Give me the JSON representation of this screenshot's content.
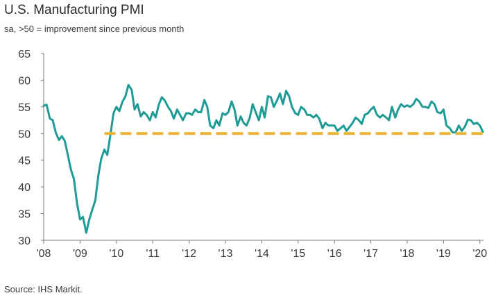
{
  "header": {
    "title": "U.S. Manufacturing PMI",
    "subtitle": "sa, >50 = improvement since previous month"
  },
  "footer": {
    "source": "Source: IHS Markit."
  },
  "colors": {
    "line": "#1e9b95",
    "threshold": "#e8b333",
    "axis": "#7a7a7a",
    "grid": "#d9d9d9"
  },
  "chart_data": {
    "type": "line",
    "title": "U.S. Manufacturing PMI",
    "subtitle": "sa, >50 = improvement since previous month",
    "ylim": [
      30,
      65
    ],
    "xlim": [
      2008.0,
      2020.1
    ],
    "yticks": [
      30,
      35,
      40,
      45,
      50,
      55,
      60,
      65
    ],
    "xticks": [
      {
        "value": 2008,
        "label": "'08"
      },
      {
        "value": 2009,
        "label": "'09"
      },
      {
        "value": 2010,
        "label": "'10"
      },
      {
        "value": 2011,
        "label": "'11"
      },
      {
        "value": 2012,
        "label": "'12"
      },
      {
        "value": 2013,
        "label": "'13"
      },
      {
        "value": 2014,
        "label": "'14"
      },
      {
        "value": 2015,
        "label": "'15"
      },
      {
        "value": 2016,
        "label": "'16"
      },
      {
        "value": 2017,
        "label": "'17"
      },
      {
        "value": 2018,
        "label": "'18"
      },
      {
        "value": 2019,
        "label": "'19"
      },
      {
        "value": 2020,
        "label": "'20"
      }
    ],
    "grid": false,
    "series": [
      {
        "style": "solid",
        "x": [
          2008.0,
          2008.08,
          2008.17,
          2008.25,
          2008.33,
          2008.42,
          2008.5,
          2008.58,
          2008.67,
          2008.75,
          2008.83,
          2008.92,
          2009.0,
          2009.08,
          2009.17,
          2009.25,
          2009.33,
          2009.42,
          2009.5,
          2009.58,
          2009.67,
          2009.75,
          2009.83,
          2009.92,
          2010.0,
          2010.08,
          2010.17,
          2010.25,
          2010.33,
          2010.42,
          2010.5,
          2010.58,
          2010.67,
          2010.75,
          2010.83,
          2010.92,
          2011.0,
          2011.08,
          2011.17,
          2011.25,
          2011.33,
          2011.42,
          2011.5,
          2011.58,
          2011.67,
          2011.75,
          2011.83,
          2011.92,
          2012.0,
          2012.08,
          2012.17,
          2012.25,
          2012.33,
          2012.42,
          2012.5,
          2012.58,
          2012.67,
          2012.75,
          2012.83,
          2012.92,
          2013.0,
          2013.08,
          2013.17,
          2013.25,
          2013.33,
          2013.42,
          2013.5,
          2013.58,
          2013.67,
          2013.75,
          2013.83,
          2013.92,
          2014.0,
          2014.08,
          2014.17,
          2014.25,
          2014.33,
          2014.42,
          2014.5,
          2014.58,
          2014.67,
          2014.75,
          2014.83,
          2014.92,
          2015.0,
          2015.08,
          2015.17,
          2015.25,
          2015.33,
          2015.42,
          2015.5,
          2015.58,
          2015.67,
          2015.75,
          2015.83,
          2015.92,
          2016.0,
          2016.08,
          2016.17,
          2016.25,
          2016.33,
          2016.42,
          2016.5,
          2016.58,
          2016.67,
          2016.75,
          2016.83,
          2016.92,
          2017.0,
          2017.08,
          2017.17,
          2017.25,
          2017.33,
          2017.42,
          2017.5,
          2017.58,
          2017.67,
          2017.75,
          2017.83,
          2017.92,
          2018.0,
          2018.08,
          2018.17,
          2018.25,
          2018.33,
          2018.42,
          2018.5,
          2018.58,
          2018.67,
          2018.75,
          2018.83,
          2018.92,
          2019.0,
          2019.08,
          2019.17,
          2019.25,
          2019.33,
          2019.42,
          2019.5,
          2019.58,
          2019.67,
          2019.75,
          2019.83,
          2019.92,
          2020.0,
          2020.08
        ],
        "y": [
          55.2,
          55.4,
          52.8,
          52.5,
          50.2,
          48.8,
          49.5,
          48.6,
          45.8,
          43.2,
          41.5,
          36.8,
          33.9,
          34.4,
          31.4,
          33.8,
          35.6,
          37.5,
          42.0,
          45.2,
          47.0,
          46.0,
          49.5,
          53.8,
          55.0,
          54.2,
          56.0,
          57.0,
          59.1,
          58.2,
          54.5,
          55.5,
          53.2,
          54.0,
          53.5,
          52.5,
          54.0,
          53.0,
          55.5,
          56.8,
          56.2,
          55.0,
          54.2,
          52.8,
          54.5,
          53.5,
          52.5,
          53.8,
          53.8,
          53.5,
          54.5,
          54.0,
          54.0,
          56.3,
          55.0,
          51.5,
          51.0,
          52.5,
          51.5,
          53.8,
          53.5,
          54.0,
          56.0,
          54.5,
          51.5,
          53.2,
          52.0,
          51.5,
          53.0,
          55.5,
          54.0,
          52.5,
          55.0,
          53.0,
          57.0,
          56.8,
          55.0,
          56.2,
          57.5,
          55.5,
          58.0,
          57.0,
          55.0,
          53.8,
          53.5,
          55.0,
          54.5,
          53.5,
          53.5,
          53.0,
          53.5,
          52.8,
          51.0,
          52.0,
          51.5,
          51.5,
          51.5,
          50.5,
          51.0,
          51.5,
          50.5,
          51.3,
          52.0,
          53.0,
          52.5,
          51.8,
          53.5,
          53.8,
          54.5,
          55.0,
          53.5,
          53.0,
          53.5,
          53.0,
          52.5,
          55.0,
          53.0,
          54.5,
          55.5,
          55.0,
          55.3,
          55.0,
          55.5,
          56.5,
          56.0,
          55.0,
          55.0,
          54.8,
          56.0,
          55.5,
          54.0,
          53.8,
          54.5,
          51.5,
          51.0,
          50.2,
          50.2,
          51.5,
          50.5,
          51.2,
          52.6,
          52.5,
          51.8,
          52.0,
          51.5,
          50.3
        ]
      },
      {
        "style": "dashed",
        "x": [
          2009.67,
          2020.1
        ],
        "y": [
          50,
          50
        ]
      }
    ]
  }
}
